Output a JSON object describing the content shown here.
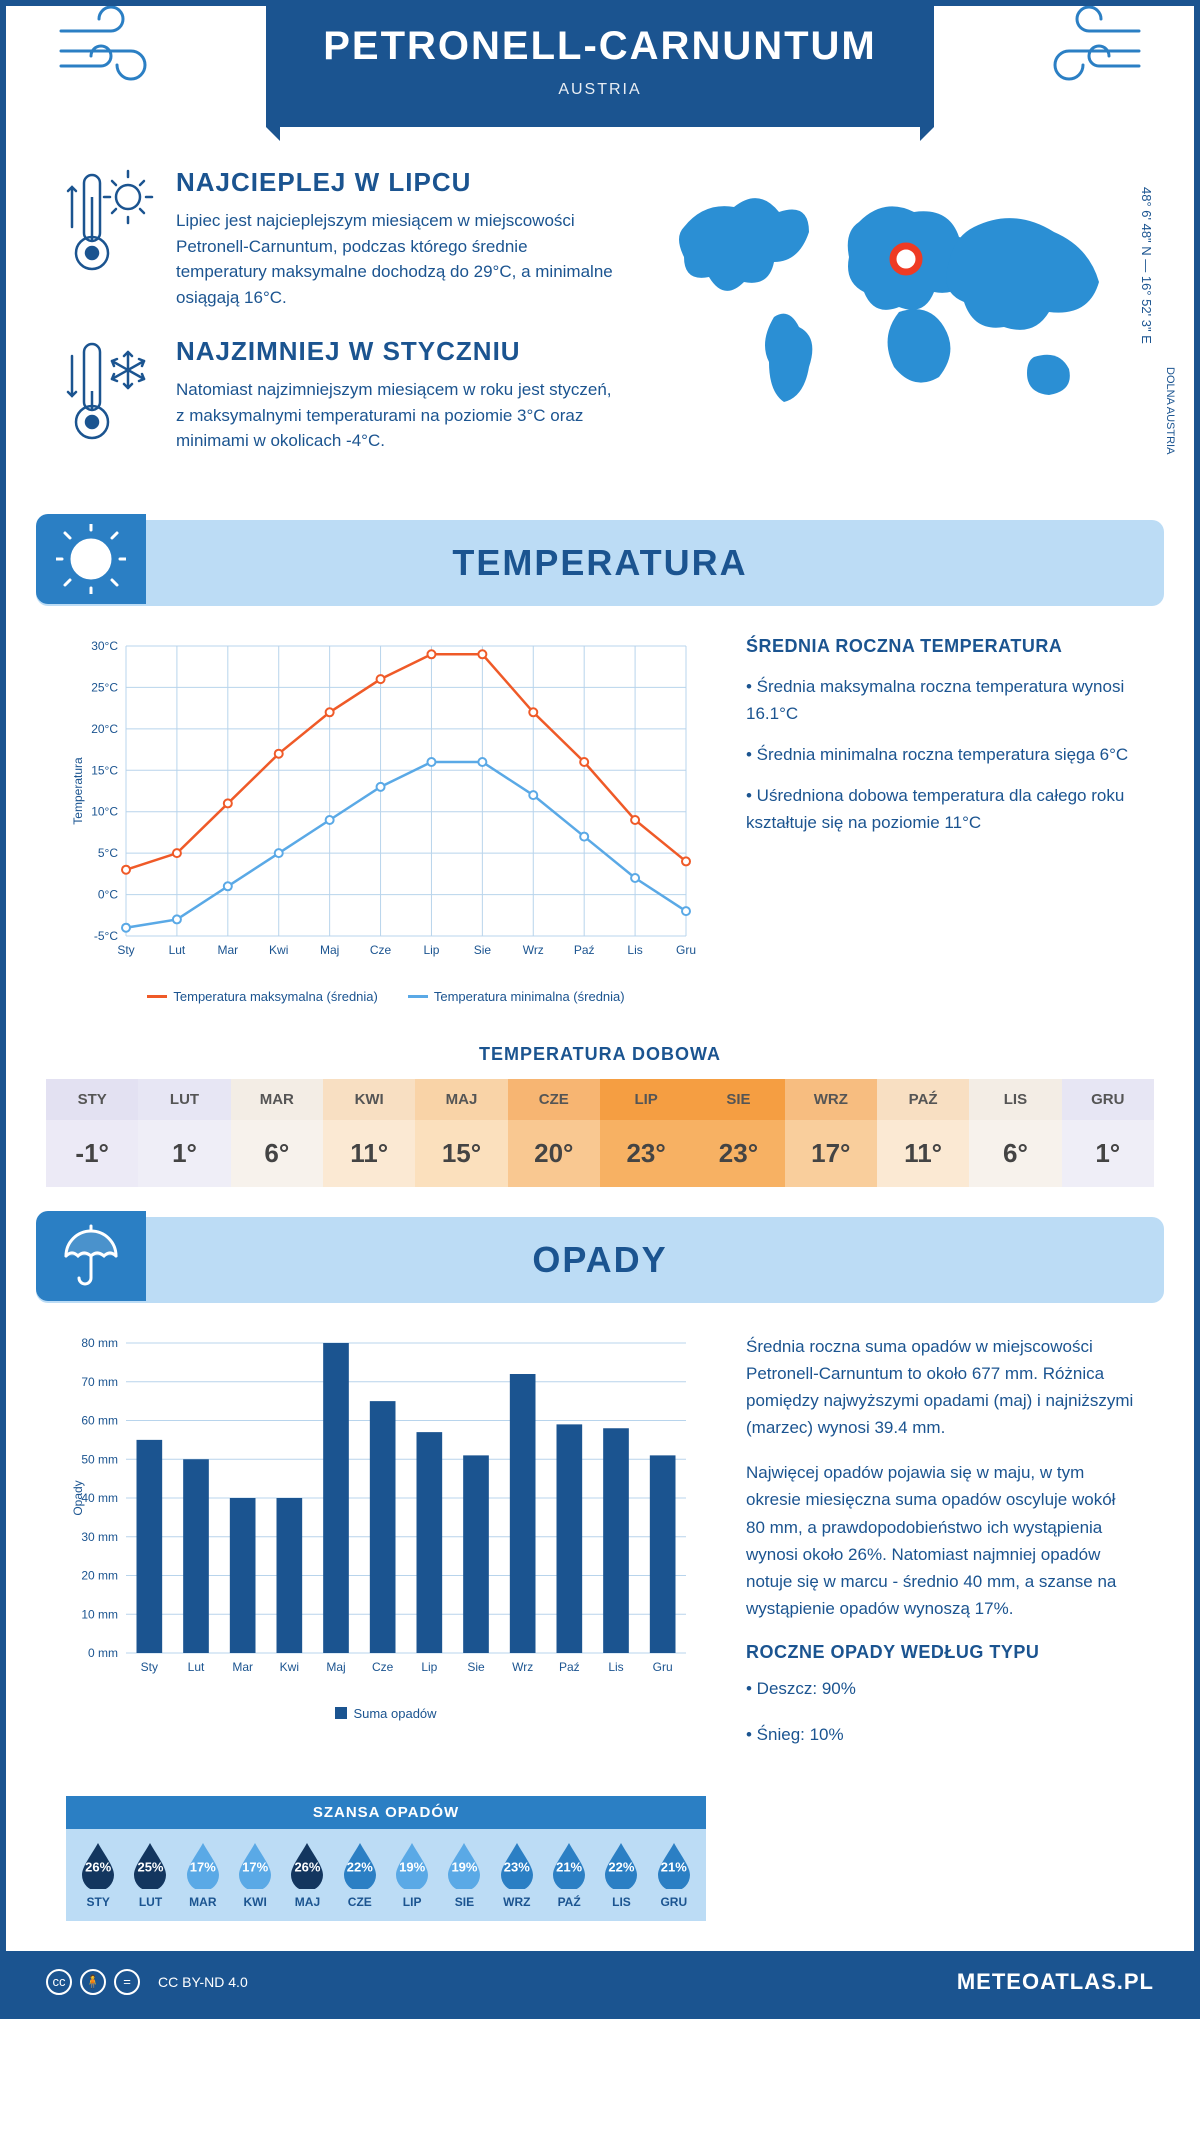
{
  "header": {
    "title": "PETRONELL-CARNUNTUM",
    "country": "AUSTRIA",
    "coords": "48° 6' 48\" N — 16° 52' 3\" E",
    "region": "DOLNA AUSTRIA"
  },
  "intro": {
    "warm": {
      "title": "NAJCIEPLEJ W LIPCU",
      "text": "Lipiec jest najcieplejszym miesiącem w miejscowości Petronell-Carnuntum, podczas którego średnie temperatury maksymalne dochodzą do 29°C, a minimalne osiągają 16°C."
    },
    "cold": {
      "title": "NAJZIMNIEJ W STYCZNIU",
      "text": "Natomiast najzimniejszym miesiącem w roku jest styczeń, z maksymalnymi temperaturami na poziomie 3°C oraz minimami w okolicach -4°C."
    }
  },
  "temp_section": {
    "banner": "TEMPERATURA",
    "chart": {
      "type": "line",
      "months": [
        "Sty",
        "Lut",
        "Mar",
        "Kwi",
        "Maj",
        "Cze",
        "Lip",
        "Sie",
        "Wrz",
        "Paź",
        "Lis",
        "Gru"
      ],
      "series": [
        {
          "name": "Temperatura maksymalna (średnia)",
          "color": "#ef5a28",
          "values": [
            3,
            5,
            11,
            17,
            22,
            26,
            29,
            29,
            22,
            16,
            9,
            4
          ]
        },
        {
          "name": "Temperatura minimalna (średnia)",
          "color": "#5aa9e6",
          "values": [
            -4,
            -3,
            1,
            5,
            9,
            13,
            16,
            16,
            12,
            7,
            2,
            -2
          ]
        }
      ],
      "ylabel": "Temperatura",
      "ylim": [
        -5,
        30
      ],
      "ytick_step": 5,
      "ytick_suffix": "°C",
      "grid_color": "#b8d4ec",
      "bg": "#ffffff",
      "axis_fontsize": 12
    },
    "side": {
      "title": "ŚREDNIA ROCZNA TEMPERATURA",
      "bullets": [
        "• Średnia maksymalna roczna temperatura wynosi 16.1°C",
        "• Średnia minimalna roczna temperatura sięga 6°C",
        "• Uśredniona dobowa temperatura dla całego roku kształtuje się na poziomie 11°C"
      ]
    },
    "dobowa": {
      "title": "TEMPERATURA DOBOWA",
      "months": [
        "STY",
        "LUT",
        "MAR",
        "KWI",
        "MAJ",
        "CZE",
        "LIP",
        "SIE",
        "WRZ",
        "PAŹ",
        "LIS",
        "GRU"
      ],
      "values": [
        "-1°",
        "1°",
        "6°",
        "11°",
        "15°",
        "20°",
        "23°",
        "23°",
        "17°",
        "11°",
        "6°",
        "1°"
      ],
      "header_bg": [
        "#e3e1f2",
        "#e7e6f4",
        "#f3ede5",
        "#f8dfc2",
        "#f9d3a7",
        "#f7b572",
        "#f59e42",
        "#f59e42",
        "#f7bd80",
        "#f8dfc2",
        "#f3ede5",
        "#e7e6f4"
      ],
      "value_bg": [
        "#eceaf6",
        "#efeef7",
        "#f7f2ec",
        "#fbe9d3",
        "#fbe0bd",
        "#f9c891",
        "#f7b163",
        "#f7b163",
        "#f9ce9c",
        "#fbe9d3",
        "#f7f2ec",
        "#efeef7"
      ]
    }
  },
  "opady_section": {
    "banner": "OPADY",
    "chart": {
      "type": "bar",
      "months": [
        "Sty",
        "Lut",
        "Mar",
        "Kwi",
        "Maj",
        "Cze",
        "Lip",
        "Sie",
        "Wrz",
        "Paź",
        "Lis",
        "Gru"
      ],
      "values": [
        55,
        50,
        40,
        40,
        80,
        65,
        57,
        51,
        72,
        59,
        58,
        51
      ],
      "bar_color": "#1b5490",
      "ylabel": "Opady",
      "ylim": [
        0,
        80
      ],
      "ytick_step": 10,
      "ytick_suffix": " mm",
      "grid_color": "#b8d4ec",
      "legend_label": "Suma opadów",
      "bar_width": 0.55,
      "axis_fontsize": 12
    },
    "para1": "Średnia roczna suma opadów w miejscowości Petronell-Carnuntum to około 677 mm. Różnica pomiędzy najwyższymi opadami (maj) i najniższymi (marzec) wynosi 39.4 mm.",
    "para2": "Najwięcej opadów pojawia się w maju, w tym okresie miesięczna suma opadów oscyluje wokół 80 mm, a prawdopodobieństwo ich wystąpienia wynosi około 26%. Natomiast najmniej opadów notuje się w marcu - średnio 40 mm, a szanse na wystąpienie opadów wynoszą 17%.",
    "szansa": {
      "title": "SZANSA OPADÓW",
      "months": [
        "STY",
        "LUT",
        "MAR",
        "KWI",
        "MAJ",
        "CZE",
        "LIP",
        "SIE",
        "WRZ",
        "PAŹ",
        "LIS",
        "GRU"
      ],
      "pct": [
        26,
        25,
        17,
        17,
        26,
        22,
        19,
        19,
        23,
        21,
        22,
        21
      ],
      "colors": [
        "#13365f",
        "#13365f",
        "#5aa9e6",
        "#5aa9e6",
        "#13365f",
        "#2b7fc4",
        "#5aa9e6",
        "#5aa9e6",
        "#2b7fc4",
        "#2b7fc4",
        "#2b7fc4",
        "#2b7fc4"
      ]
    },
    "typ": {
      "title": "ROCZNE OPADY WEDŁUG TYPU",
      "bullets": [
        "• Deszcz: 90%",
        "• Śnieg: 10%"
      ]
    }
  },
  "footer": {
    "license": "CC BY-ND 4.0",
    "site": "METEOATLAS.PL"
  }
}
